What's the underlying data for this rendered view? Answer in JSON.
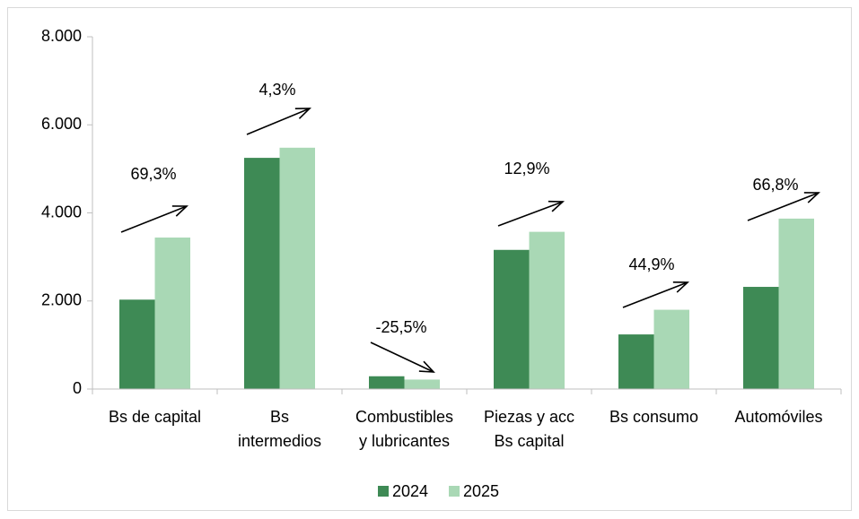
{
  "chart_data": {
    "type": "bar",
    "categories": [
      "Bs de capital",
      "Bs\nintermedios",
      "Combustibles\ny lubricantes",
      "Piezas y acc\nBs capital",
      "Bs consumo",
      "Automóviles"
    ],
    "series": [
      {
        "name": "2024",
        "color": "#3e8a55",
        "values": [
          2030,
          5250,
          290,
          3160,
          1240,
          2320
        ]
      },
      {
        "name": "2025",
        "color": "#a9d8b5",
        "values": [
          3440,
          5480,
          215,
          3570,
          1800,
          3870
        ]
      }
    ],
    "ylim": [
      0,
      8000
    ],
    "yticks": [
      0,
      {
        "value": 2000,
        "label": "2.000"
      },
      {
        "value": 4000,
        "label": "4.000"
      },
      {
        "value": 6000,
        "label": "6.000"
      },
      {
        "value": 8000,
        "label": "8.000"
      }
    ],
    "annotations": [
      "69,3%",
      "4,3%",
      "-25,5%",
      "12,9%",
      "44,9%",
      "66,8%"
    ],
    "legend": "bottom"
  }
}
